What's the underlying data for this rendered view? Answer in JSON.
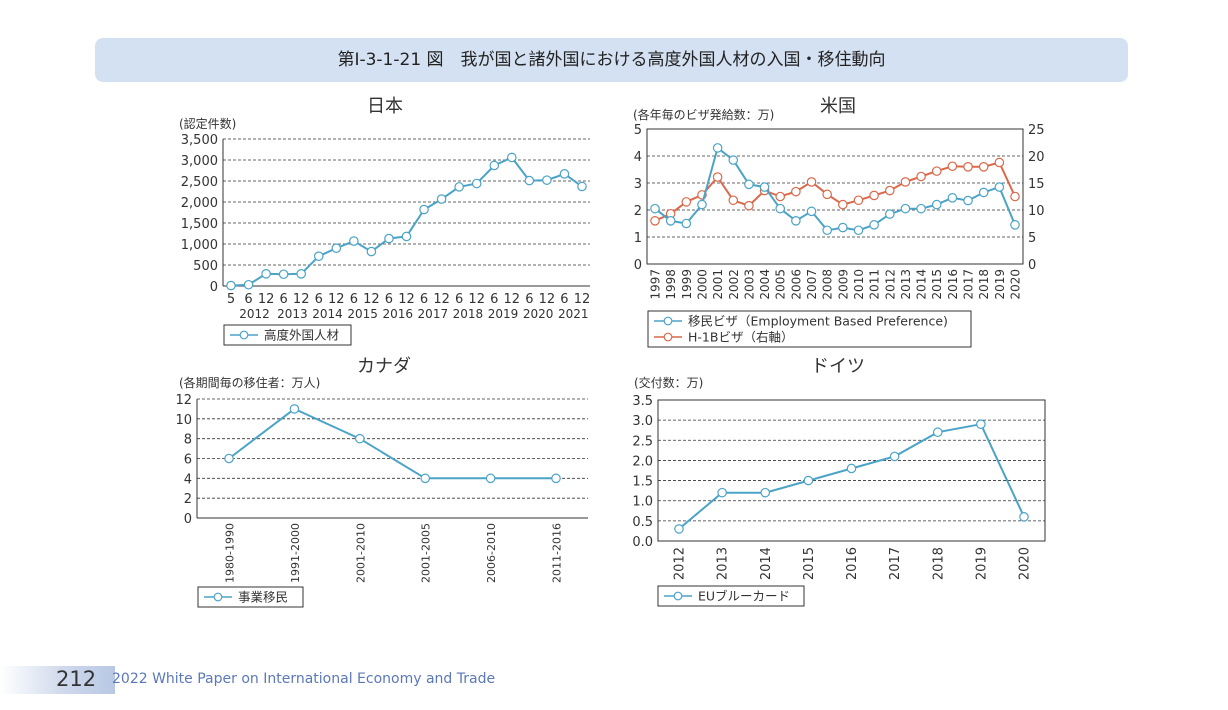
{
  "title": "第Ⅰ-3-1-21 図　我が国と諸外国における高度外国人材の入国・移住動向",
  "footer": {
    "page_number": "212",
    "publication": "2022 White Paper on International Economy and Trade"
  },
  "colors": {
    "blue_series": "#4ba3c7",
    "orange_series": "#d9694a",
    "banner": "#d4e1f2"
  },
  "chart_data": [
    {
      "id": "japan",
      "type": "line",
      "title": "日本",
      "unit_label": "(認定件数)",
      "x_tick_labels": [
        "5",
        "6",
        "12",
        "6",
        "12",
        "6",
        "12",
        "6",
        "12",
        "6",
        "12",
        "6",
        "12",
        "6",
        "12",
        "6",
        "12",
        "6",
        "12",
        "6",
        "12"
      ],
      "year_labels": [
        "2012",
        "2013",
        "2014",
        "2015",
        "2016",
        "2017",
        "2018",
        "2019",
        "2020",
        "2021"
      ],
      "y_ticks": [
        "0",
        "500",
        "1,000",
        "1,500",
        "2,000",
        "2,500",
        "3,000",
        "3,500"
      ],
      "ylim": [
        0,
        3500
      ],
      "grid": true,
      "legend_position": "bottom-left",
      "series": [
        {
          "name": "高度外国人材",
          "color": "#4ba3c7",
          "values": [
            10,
            30,
            290,
            280,
            290,
            710,
            900,
            1070,
            820,
            1130,
            1180,
            1820,
            2070,
            2360,
            2440,
            2870,
            3060,
            2510,
            2520,
            2670,
            2370
          ]
        }
      ]
    },
    {
      "id": "usa",
      "type": "line",
      "title": "米国",
      "unit_label": "(各年毎のビザ発給数：万)",
      "categories": [
        "1997",
        "1998",
        "1999",
        "2000",
        "2001",
        "2002",
        "2003",
        "2004",
        "2005",
        "2006",
        "2007",
        "2008",
        "2009",
        "2010",
        "2011",
        "2012",
        "2013",
        "2014",
        "2015",
        "2016",
        "2017",
        "2018",
        "2019",
        "2020"
      ],
      "y_ticks": [
        "0",
        "1",
        "2",
        "3",
        "4",
        "5"
      ],
      "ylim": [
        0,
        5
      ],
      "y2_ticks": [
        "0",
        "5",
        "10",
        "15",
        "20",
        "25"
      ],
      "y2lim": [
        0,
        25
      ],
      "grid": true,
      "legend_position": "bottom-left",
      "series": [
        {
          "name": "移民ビザ（Employment Based Preference)",
          "axis": "left",
          "color": "#4ba3c7",
          "values": [
            2.05,
            1.6,
            1.5,
            2.2,
            4.3,
            3.85,
            2.95,
            2.85,
            2.05,
            1.6,
            1.95,
            1.25,
            1.35,
            1.25,
            1.45,
            1.85,
            2.05,
            2.05,
            2.2,
            2.45,
            2.35,
            2.65,
            2.85,
            1.45
          ]
        },
        {
          "name": "H-1Bビザ（右軸）",
          "axis": "right",
          "color": "#d9694a",
          "values": [
            8,
            9.3,
            11.5,
            12.8,
            16.1,
            11.8,
            10.8,
            13.6,
            12.5,
            13.4,
            15.2,
            12.9,
            11.0,
            11.8,
            12.7,
            13.6,
            15.2,
            16.2,
            17.2,
            18.1,
            18.0,
            18.0,
            18.8,
            12.5
          ]
        }
      ]
    },
    {
      "id": "canada",
      "type": "line",
      "title": "カナダ",
      "unit_label": "(各期間毎の移住者：万人)",
      "categories": [
        "1980-1990",
        "1991-2000",
        "2001-2010",
        "2001-2005",
        "2006-2010",
        "2011-2016"
      ],
      "y_ticks": [
        "0",
        "2",
        "4",
        "6",
        "8",
        "10",
        "12"
      ],
      "ylim": [
        0,
        12
      ],
      "grid": true,
      "legend_position": "bottom-left",
      "series": [
        {
          "name": "事業移民",
          "color": "#4ba3c7",
          "values": [
            6,
            11,
            8,
            4,
            4,
            4
          ]
        }
      ]
    },
    {
      "id": "germany",
      "type": "line",
      "title": "ドイツ",
      "unit_label": "(交付数：万)",
      "categories": [
        "2012",
        "2013",
        "2014",
        "2015",
        "2016",
        "2017",
        "2018",
        "2019",
        "2020"
      ],
      "y_ticks": [
        "0.0",
        "0.5",
        "1.0",
        "1.5",
        "2.0",
        "2.5",
        "3.0",
        "3.5"
      ],
      "ylim": [
        0,
        3.5
      ],
      "grid": true,
      "legend_position": "bottom-left",
      "series": [
        {
          "name": "EUブルーカード",
          "color": "#4ba3c7",
          "values": [
            0.3,
            1.2,
            1.2,
            1.5,
            1.8,
            2.1,
            2.7,
            2.9,
            0.6
          ]
        }
      ]
    }
  ]
}
